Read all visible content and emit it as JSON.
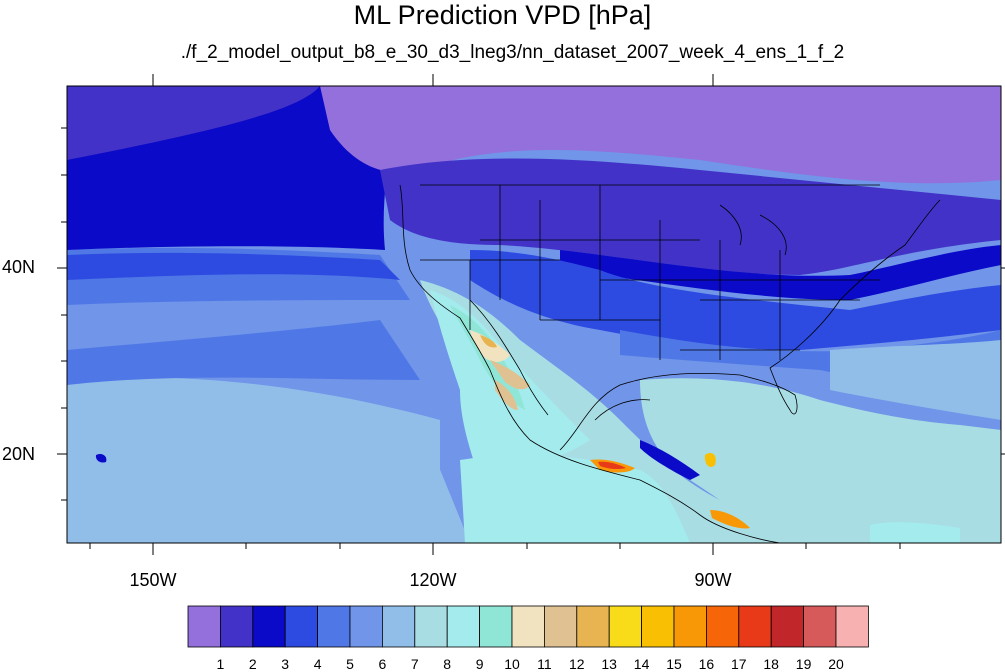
{
  "title": "ML Prediction VPD [hPa]",
  "subtitle": "./f_2_model_output_b8_e_30_d3_lneg3/nn_dataset_2007_week_4_ens_1_f_2",
  "map": {
    "projection": "cylindrical equidistant",
    "lon_range": [
      -160,
      -63
    ],
    "lat_range": [
      10,
      59
    ],
    "variable": "VPD",
    "units": "hPa",
    "lat_labels": [
      "40N",
      "20N"
    ],
    "lon_labels": [
      "150W",
      "120W",
      "90W"
    ]
  },
  "colorbar": {
    "colors": [
      "#9370db",
      "#4232c8",
      "#0a0ac8",
      "#2d4be1",
      "#4f78e6",
      "#7095e9",
      "#91bee9",
      "#a8dde4",
      "#a4ebee",
      "#90e6d6",
      "#f2e3c0",
      "#e0c192",
      "#e8b452",
      "#f8dc1a",
      "#f9c003",
      "#f89807",
      "#f66608",
      "#e83a18",
      "#c0262a",
      "#d65a5a",
      "#f7b1b1"
    ],
    "labels": [
      "1",
      "2",
      "3",
      "4",
      "5",
      "6",
      "7",
      "8",
      "9",
      "10",
      "11",
      "12",
      "13",
      "14",
      "15",
      "16",
      "17",
      "18",
      "19",
      "20"
    ]
  }
}
